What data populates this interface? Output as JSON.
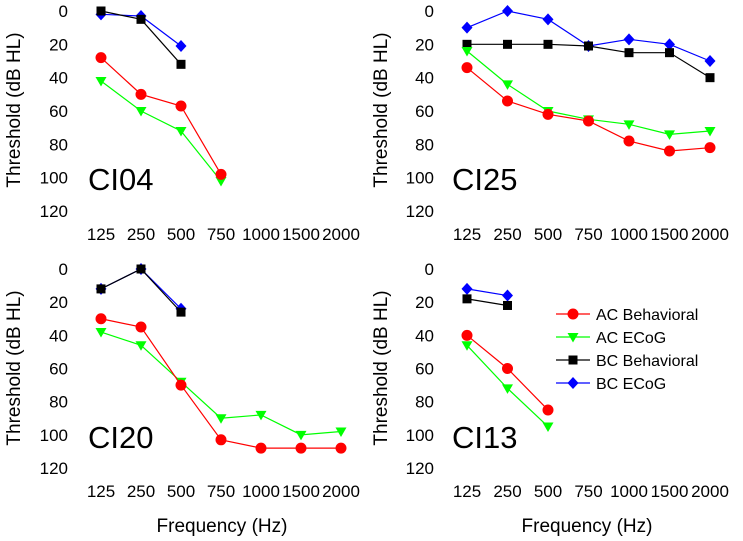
{
  "figure": {
    "xlabel": "Frequency (Hz)",
    "ylabel": "Threshold (dB HL)"
  },
  "series_styles": [
    {
      "name": "AC Behavioral",
      "color": "#ff0000",
      "marker": "circle"
    },
    {
      "name": "AC ECoG",
      "color": "#00ff00",
      "marker": "triangle-down"
    },
    {
      "name": "BC Behavioral",
      "color": "#000000",
      "marker": "square"
    },
    {
      "name": "BC ECoG",
      "color": "#0000ff",
      "marker": "diamond"
    }
  ],
  "legend": {
    "placement": "right of bottom-right panel",
    "entries": [
      "AC Behavioral",
      "AC ECoG",
      "BC Behavioral",
      "BC ECoG"
    ]
  },
  "chart_data": [
    {
      "type": "line",
      "title": "CI04",
      "xlabel": "",
      "ylabel": "Threshold (dB HL)",
      "categories": [
        "125",
        "250",
        "500",
        "750",
        "1000",
        "1500",
        "2000"
      ],
      "yticks": [
        0,
        20,
        40,
        60,
        80,
        100,
        120
      ],
      "ylim": [
        0,
        120
      ],
      "y_inverted": true,
      "series": [
        {
          "name": "AC Behavioral",
          "values": [
            28,
            50,
            57,
            98,
            null,
            null,
            null
          ]
        },
        {
          "name": "AC ECoG",
          "values": [
            42,
            60,
            72,
            102,
            null,
            null,
            null
          ]
        },
        {
          "name": "BC Behavioral",
          "values": [
            0,
            5,
            32,
            null,
            null,
            null,
            null
          ]
        },
        {
          "name": "BC ECoG",
          "values": [
            2,
            3,
            21,
            null,
            null,
            null,
            null
          ]
        }
      ]
    },
    {
      "type": "line",
      "title": "CI25",
      "xlabel": "",
      "ylabel": "Threshold (dB HL)",
      "categories": [
        "125",
        "250",
        "500",
        "750",
        "1000",
        "1500",
        "2000"
      ],
      "yticks": [
        0,
        20,
        40,
        60,
        80,
        100,
        120
      ],
      "ylim": [
        0,
        120
      ],
      "y_inverted": true,
      "series": [
        {
          "name": "AC Behavioral",
          "values": [
            34,
            54,
            62,
            66,
            78,
            84,
            82
          ]
        },
        {
          "name": "AC ECoG",
          "values": [
            24,
            44,
            60,
            65,
            68,
            74,
            72
          ]
        },
        {
          "name": "BC Behavioral",
          "values": [
            20,
            20,
            20,
            21,
            25,
            25,
            40
          ]
        },
        {
          "name": "BC ECoG",
          "values": [
            10,
            0,
            5,
            21,
            17,
            20,
            30
          ]
        }
      ]
    },
    {
      "type": "line",
      "title": "CI20",
      "xlabel": "Frequency (Hz)",
      "ylabel": "Threshold (dB HL)",
      "categories": [
        "125",
        "250",
        "500",
        "750",
        "1000",
        "1500",
        "2000"
      ],
      "yticks": [
        0,
        20,
        40,
        60,
        80,
        100,
        120
      ],
      "ylim": [
        0,
        120
      ],
      "y_inverted": true,
      "series": [
        {
          "name": "AC Behavioral",
          "values": [
            30,
            35,
            70,
            103,
            108,
            108,
            108
          ]
        },
        {
          "name": "AC ECoG",
          "values": [
            38,
            46,
            68,
            90,
            88,
            100,
            98
          ]
        },
        {
          "name": "BC Behavioral",
          "values": [
            12,
            0,
            26,
            null,
            null,
            null,
            null
          ]
        },
        {
          "name": "BC ECoG",
          "values": [
            12,
            0,
            24,
            null,
            null,
            null,
            null
          ]
        }
      ]
    },
    {
      "type": "line",
      "title": "CI13",
      "xlabel": "Frequency (Hz)",
      "ylabel": "Threshold (dB HL)",
      "categories": [
        "125",
        "250",
        "500",
        "750",
        "1000",
        "1500",
        "2000"
      ],
      "yticks": [
        0,
        20,
        40,
        60,
        80,
        100,
        120
      ],
      "ylim": [
        0,
        120
      ],
      "y_inverted": true,
      "series": [
        {
          "name": "AC Behavioral",
          "values": [
            40,
            60,
            85,
            null,
            null,
            null,
            null
          ]
        },
        {
          "name": "AC ECoG",
          "values": [
            46,
            72,
            95,
            null,
            null,
            null,
            null
          ]
        },
        {
          "name": "BC Behavioral",
          "values": [
            18,
            22,
            null,
            null,
            null,
            null,
            null
          ]
        },
        {
          "name": "BC ECoG",
          "values": [
            12,
            16,
            null,
            null,
            null,
            null,
            null
          ]
        }
      ]
    }
  ]
}
